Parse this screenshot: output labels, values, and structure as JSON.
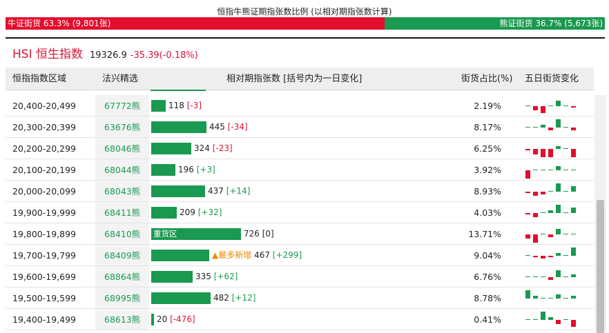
{
  "ratio": {
    "title": "恒指牛熊证期指张数比例 (以相对期指张数计算)",
    "bull_label": "牛证街货 63.3% (9,801张)",
    "bear_label": "熊证街货 36.7% (5,673张)",
    "bull_share": 0.633
  },
  "index": {
    "name": "HSI 恒生指数",
    "value": "19326.9",
    "change": "-35.39(-0.18%)"
  },
  "headers": {
    "range": "恒指指数区域",
    "pick": "法兴精选",
    "count": "相对期指张数 [括号内为一日变化]",
    "share": "街货占比(%)",
    "five_day": "五日街货变化"
  },
  "colors": {
    "bull": "#e30d2c",
    "bear": "#1a9950",
    "orange": "#f08a00"
  },
  "rows": [
    {
      "range": "20,400-20,499",
      "pick": "67772熊",
      "count": "118",
      "change": "[-3]",
      "dir": "neg",
      "tag": "",
      "share": "2.19%",
      "bar_value": 118,
      "spark": [
        0.5,
        -3,
        -5,
        0.5,
        4,
        0.5,
        -1
      ]
    },
    {
      "range": "20,300-20,399",
      "pick": "63676熊",
      "count": "445",
      "change": "[-34]",
      "dir": "neg",
      "tag": "",
      "share": "8.17%",
      "bar_value": 445,
      "spark": [
        0.5,
        0.5,
        2,
        -2,
        6,
        0.5,
        -2
      ]
    },
    {
      "range": "20,200-20,299",
      "pick": "68046熊",
      "count": "324",
      "change": "[-23]",
      "dir": "neg",
      "tag": "",
      "share": "6.25%",
      "bar_value": 324,
      "spark": [
        -1,
        -4,
        -6,
        -6,
        2,
        0.5,
        -6
      ]
    },
    {
      "range": "20,100-20,199",
      "pick": "68044熊",
      "count": "196",
      "change": "[+3]",
      "dir": "pos",
      "tag": "",
      "share": "3.92%",
      "bar_value": 196,
      "spark": [
        -6,
        0.5,
        0.5,
        0.5,
        3,
        0.5,
        0.5
      ]
    },
    {
      "range": "20,000-20,099",
      "pick": "68043熊",
      "count": "437",
      "change": "[+14]",
      "dir": "pos",
      "tag": "",
      "share": "8.93%",
      "bar_value": 437,
      "spark": [
        -1,
        -3,
        -2,
        0.5,
        6,
        0.5,
        4
      ]
    },
    {
      "range": "19,900-19,999",
      "pick": "68411熊",
      "count": "209",
      "change": "[+32]",
      "dir": "pos",
      "tag": "",
      "share": "4.03%",
      "bar_value": 209,
      "spark": [
        -1,
        -3,
        0.5,
        2,
        6,
        0.5,
        4
      ]
    },
    {
      "range": "19,800-19,899",
      "pick": "68410熊",
      "count": "726",
      "change": "[0]",
      "dir": "zero",
      "tag": "重货区",
      "share": "13.71%",
      "bar_value": 726,
      "spark": [
        -3,
        -6,
        0.5,
        -2,
        4,
        0.5,
        0.5
      ]
    },
    {
      "range": "19,700-19,799",
      "pick": "68409熊",
      "count": "467",
      "change": "[+299]",
      "dir": "pos",
      "tag": "▲最多新增",
      "share": "9.04%",
      "bar_value": 467,
      "spark": [
        0.5,
        -1,
        -2,
        -1,
        2,
        0.5,
        6
      ]
    },
    {
      "range": "19,600-19,699",
      "pick": "68864熊",
      "count": "335",
      "change": "[+62]",
      "dir": "pos",
      "tag": "",
      "share": "6.76%",
      "bar_value": 335,
      "spark": [
        0.5,
        0.5,
        0.5,
        -2,
        5,
        0.5,
        2
      ]
    },
    {
      "range": "19,500-19,599",
      "pick": "68995熊",
      "count": "482",
      "change": "[+12]",
      "dir": "pos",
      "tag": "",
      "share": "8.78%",
      "bar_value": 482,
      "spark": [
        6,
        2,
        0.5,
        0.5,
        3,
        0.5,
        2
      ]
    },
    {
      "range": "19,400-19,499",
      "pick": "68613熊",
      "count": "20",
      "change": "[-476]",
      "dir": "neg",
      "tag": "",
      "share": "0.41%",
      "bar_value": 20,
      "spark": [
        0.5,
        0.5,
        6,
        2,
        -3,
        0.5,
        -5
      ]
    }
  ]
}
